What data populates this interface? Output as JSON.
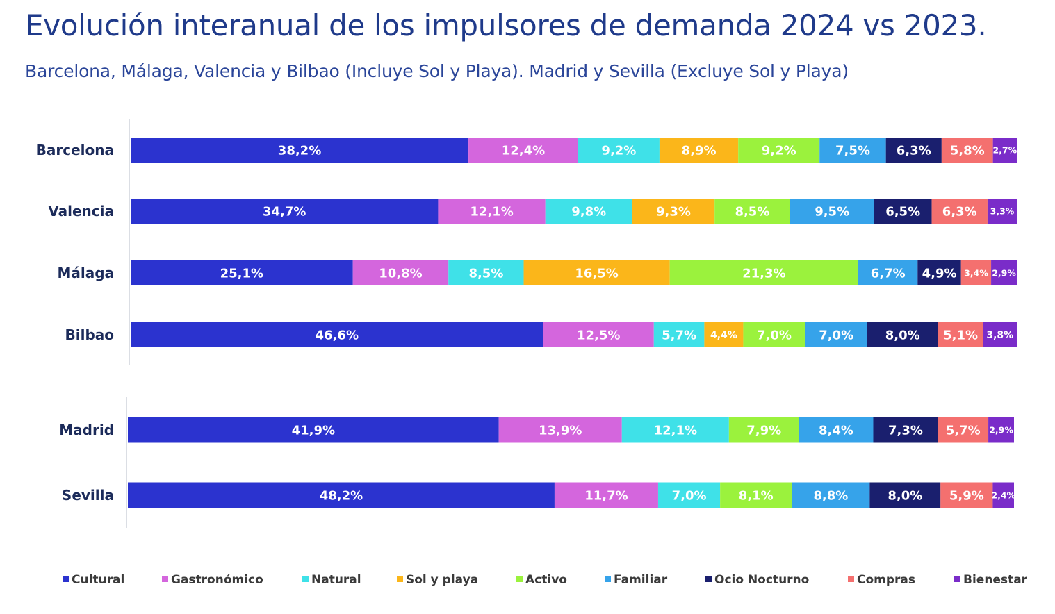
{
  "chart_data": {
    "type": "bar",
    "orientation": "horizontal",
    "stacked": true,
    "title": "Evolución interanual de los impulsores de demanda 2024 vs 2023.",
    "subtitle": "Barcelona, Málaga, Valencia y Bilbao (Incluye Sol y Playa). Madrid  y Sevilla (Excluye Sol y Playa)",
    "categories": [
      "Barcelona",
      "Valencia",
      "Málaga",
      "Bilbao",
      "Madrid",
      "Sevilla"
    ],
    "groups": [
      {
        "categories": [
          "Barcelona",
          "Valencia",
          "Málaga",
          "Bilbao"
        ]
      },
      {
        "categories": [
          "Madrid",
          "Sevilla"
        ]
      }
    ],
    "legend_position": "bottom",
    "grid": false,
    "series": [
      {
        "name": "Cultural",
        "color": "#2b33cf",
        "values": [
          38.2,
          34.7,
          25.1,
          46.6,
          41.9,
          48.2
        ],
        "labels": [
          "38,2%",
          "34,7%",
          "25,1%",
          "46,6%",
          "41,9%",
          "48,2%"
        ]
      },
      {
        "name": "Gastronómico",
        "color": "#d466dd",
        "values": [
          12.4,
          12.1,
          10.8,
          12.5,
          13.9,
          11.7
        ],
        "labels": [
          "12,4%",
          "12,1%",
          "10,8%",
          "12,5%",
          "13,9%",
          "11,7%"
        ]
      },
      {
        "name": "Natural",
        "color": "#3fe1e8",
        "values": [
          9.2,
          9.8,
          8.5,
          5.7,
          12.1,
          7.0
        ],
        "labels": [
          "9,2%",
          "9,8%",
          "8,5%",
          "5,7%",
          "12,1%",
          "7,0%"
        ]
      },
      {
        "name": "Sol y playa",
        "color": "#fbb61a",
        "values": [
          8.9,
          9.3,
          16.5,
          4.4,
          null,
          null
        ],
        "labels": [
          "8,9%",
          "9,3%",
          "16,5%",
          "4,4%",
          null,
          null
        ]
      },
      {
        "name": "Activo",
        "color": "#9bf23d",
        "values": [
          9.2,
          8.5,
          21.3,
          7.0,
          7.9,
          8.1
        ],
        "labels": [
          "9,2%",
          "8,5%",
          "21,3%",
          "7,0%",
          "7,9%",
          "8,1%"
        ]
      },
      {
        "name": "Familiar",
        "color": "#36a3ea",
        "values": [
          7.5,
          9.5,
          6.7,
          7.0,
          8.4,
          8.8
        ],
        "labels": [
          "7,5%",
          "9,5%",
          "6,7%",
          "7,0%",
          "8,4%",
          "8,8%"
        ]
      },
      {
        "name": "Ocio Nocturno",
        "color": "#1a1f6e",
        "values": [
          6.3,
          6.5,
          4.9,
          8.0,
          7.3,
          8.0
        ],
        "labels": [
          "6,3%",
          "6,5%",
          "4,9%",
          "8,0%",
          "7,3%",
          "8,0%"
        ]
      },
      {
        "name": "Compras",
        "color": "#f4706f",
        "values": [
          5.8,
          6.3,
          3.4,
          5.1,
          5.7,
          5.9
        ],
        "labels": [
          "5,8%",
          "6,3%",
          "3,4%",
          "5,1%",
          "5,7%",
          "5,9%"
        ]
      },
      {
        "name": "Bienestar",
        "color": "#7a2cc9",
        "values": [
          2.7,
          3.3,
          2.9,
          3.8,
          2.9,
          2.4
        ],
        "labels": [
          "2,7%",
          "3,3%",
          "2,9%",
          "3,8%",
          "2,9%",
          "2,4%"
        ]
      }
    ]
  }
}
